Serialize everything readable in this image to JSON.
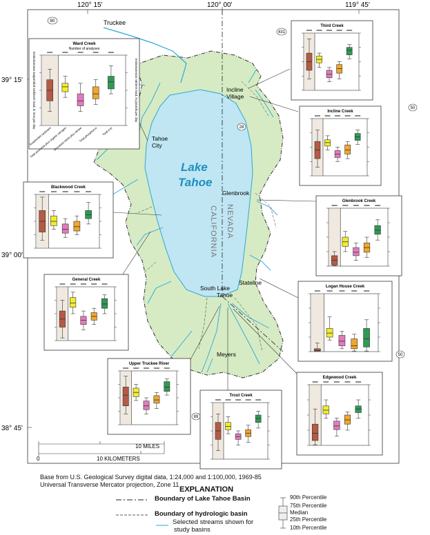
{
  "map": {
    "lake_label_line1": "Lake",
    "lake_label_line2": "Tahoe",
    "state_left": "CALIFORNIA",
    "state_right": "NEVADA",
    "places": {
      "truckee": "Truckee",
      "incline1": "Incline",
      "incline2": "Village",
      "tahoe_city1": "Tahoe",
      "tahoe_city2": "City",
      "glenbrook": "Glenbrook",
      "stateline": "Stateline",
      "slt1": "South Lake",
      "slt2": "Tahoe",
      "meyers": "Meyers"
    },
    "routes": [
      "80",
      "431",
      "28",
      "50",
      "89",
      "50"
    ],
    "graticule": {
      "top": [
        "120° 15'",
        "120° 00'",
        "119° 45'"
      ],
      "left": [
        "39° 15'",
        "39° 00'",
        "38° 45'"
      ]
    },
    "scale": {
      "miles_label": "10 MILES",
      "km_label": "10 KILOMETERS",
      "zero": "0"
    },
    "colors": {
      "lake": "#bfe6f2",
      "basin": "#d6ebc4",
      "stream": "#2aa7d6",
      "sediment": "#b55a45",
      "suspended": "#f2ec2e",
      "dissolved": "#e27bbe",
      "total_n": "#f1a72e",
      "total_p": "#2f9a55"
    }
  },
  "insets": [
    {
      "id": "ward",
      "title": "Ward Creek",
      "subtitle": "Number of analyses",
      "ylabel_left": "Instantaneous suspended sediment load, in tons per day",
      "ylabel_right": "Instantaneous nutrient load, in pounds per day",
      "xcats": [
        "Suspended sediment",
        "Total ammonia plus organic nitrogen",
        "Dissolved nitrite plus nitrate",
        "Total phosphorus",
        "Total iron"
      ]
    },
    {
      "id": "third",
      "title": "Third Creek"
    },
    {
      "id": "incline",
      "title": "Incline Creek"
    },
    {
      "id": "blackwood",
      "title": "Blackwood Creek"
    },
    {
      "id": "glenbrook",
      "title": "Glenbrook Creek"
    },
    {
      "id": "general",
      "title": "General Creek"
    },
    {
      "id": "logan",
      "title": "Logan House Creek"
    },
    {
      "id": "upper",
      "title": "Upper Truckee River"
    },
    {
      "id": "trout",
      "title": "Trout Creek"
    },
    {
      "id": "edgewood",
      "title": "Edgewood Creek"
    }
  ],
  "credit": {
    "line1": "Base from U.S. Geological Survey digital data, 1:24,000 and 1:100,000, 1969-85",
    "line2": "Universal Transverse Mercator projection, Zone 11"
  },
  "explanation": {
    "title": "EXPLANATION",
    "item1": "Boundary of Lake Tahoe Basin",
    "item2": "Boundary of hydrologic basin",
    "item3a": "Selected streams shown for",
    "item3b": "study basins",
    "p90": "90th Percentile",
    "p75": "75th Percentile",
    "median": "Median",
    "p25": "25th Percentile",
    "p10": "10th Percentile"
  }
}
